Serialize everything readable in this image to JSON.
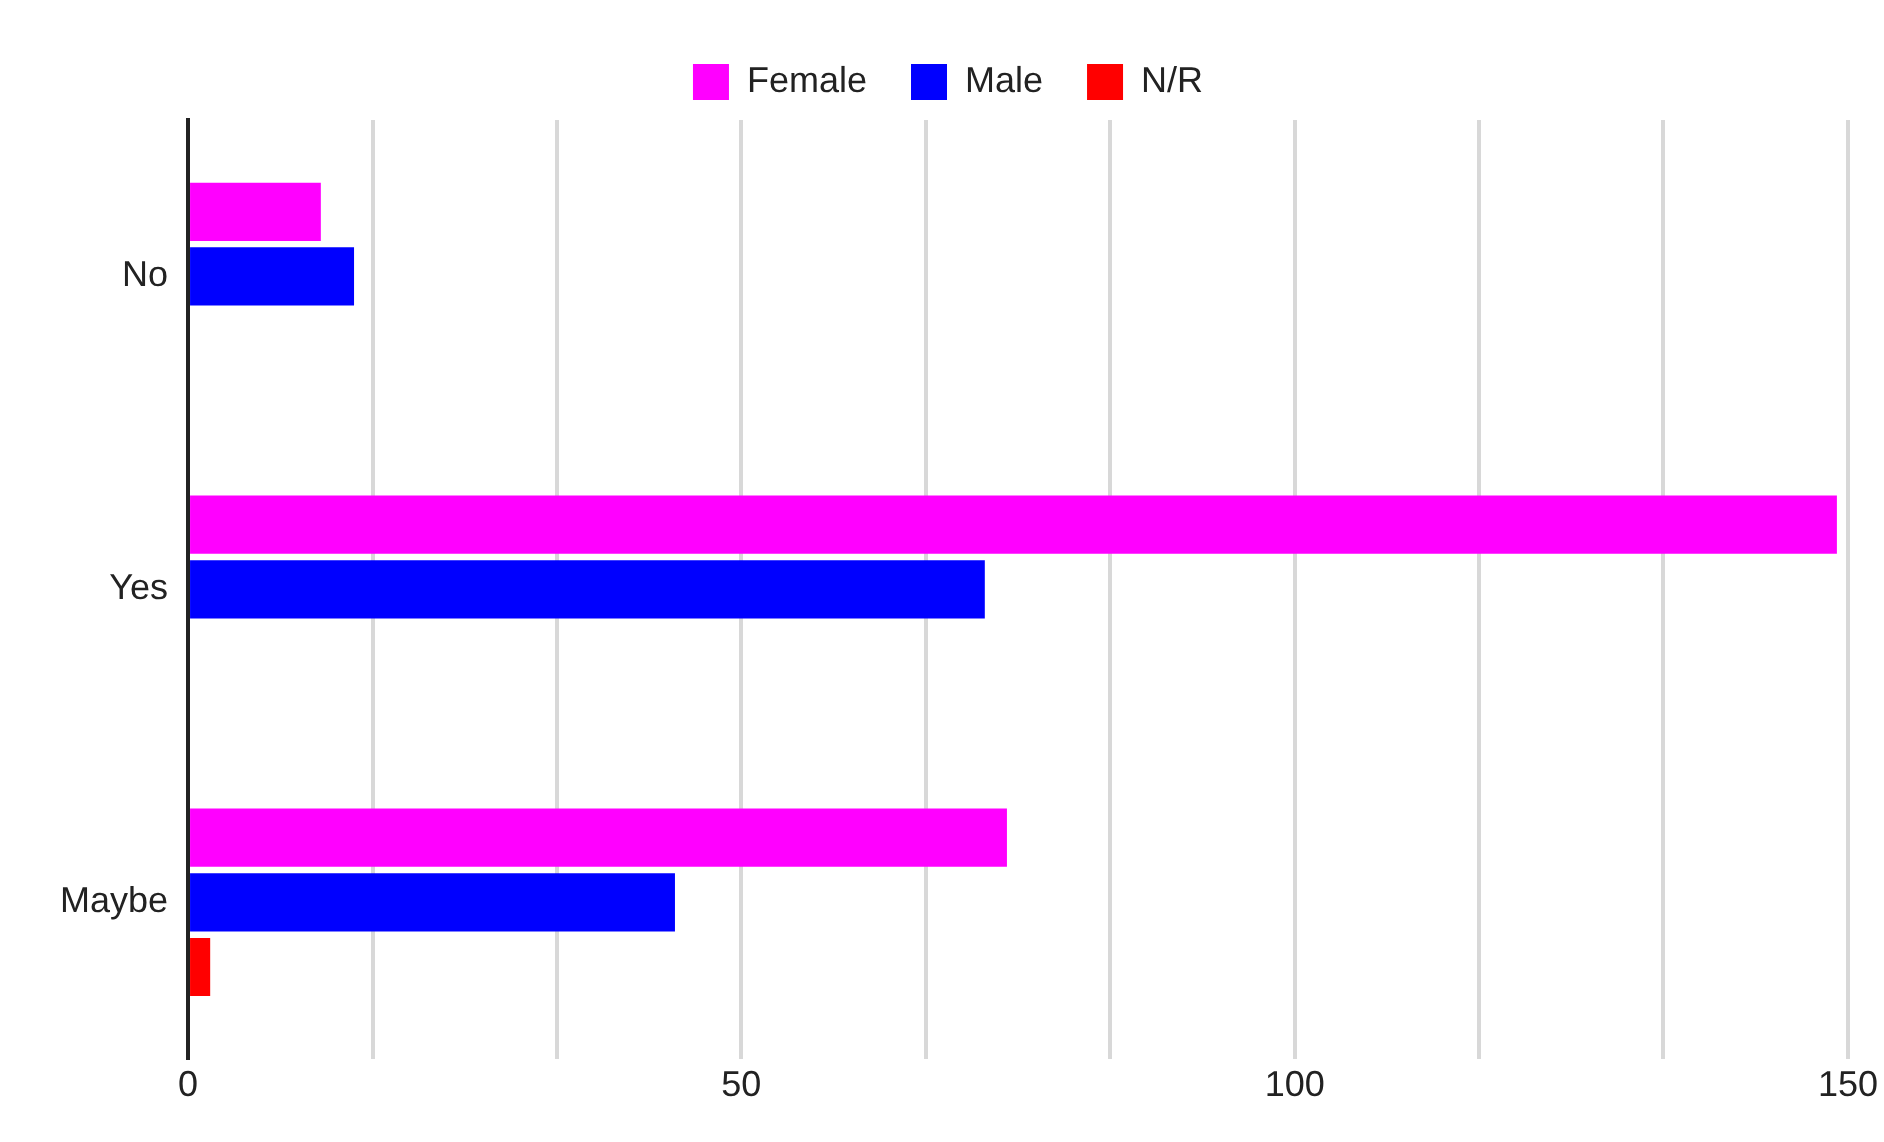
{
  "chart_data": {
    "type": "bar",
    "orientation": "horizontal",
    "categories": [
      "No",
      "Yes",
      "Maybe"
    ],
    "series": [
      {
        "name": "Female",
        "color": "#ff00ff",
        "values": [
          12,
          149,
          74
        ]
      },
      {
        "name": "Male",
        "color": "#0000ff",
        "values": [
          15,
          72,
          44
        ]
      },
      {
        "name": "N/R",
        "color": "#ff0000",
        "values": [
          0,
          0,
          2
        ]
      }
    ],
    "xlim": [
      0,
      150
    ],
    "xticks": [
      0,
      {
        "value": 16.7,
        "label": null
      },
      {
        "value": 33.3,
        "label": null
      },
      50,
      {
        "value": 66.7,
        "label": null
      },
      {
        "value": 83.3,
        "label": null
      },
      100,
      {
        "value": 116.7,
        "label": null
      },
      {
        "value": 133.3,
        "label": null
      },
      150
    ],
    "grid": "x",
    "legend": "top"
  }
}
